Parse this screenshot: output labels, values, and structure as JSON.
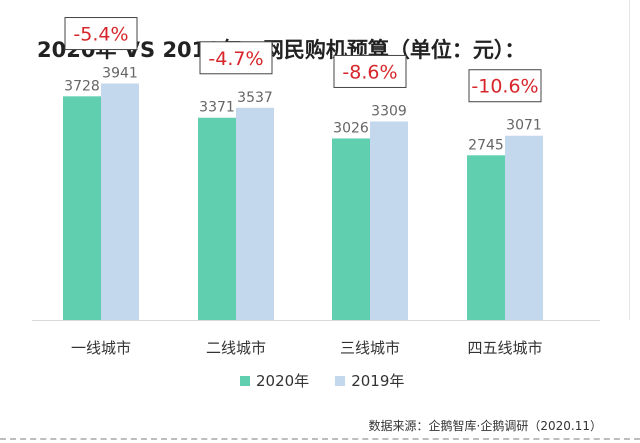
{
  "title": "2020年 VS 2019年，网民购机预算（单位：元）：",
  "source": "数据来源：企鹅智库·企鹅调研（2020.11）",
  "colors": {
    "series_2020": "#5fcfaf",
    "series_2019": "#c3d7ed",
    "change_text": "#d7262b",
    "value_text": "#666666",
    "axis": "#d9d9d9"
  },
  "chart_data": {
    "type": "bar",
    "title": "2020年 VS 2019年，网民购机预算（单位：元）：",
    "xlabel": "",
    "ylabel": "",
    "ylim": [
      0,
      5000
    ],
    "grid": false,
    "legend_position": "bottom",
    "categories": [
      "一线城市",
      "二线城市",
      "三线城市",
      "四五线城市"
    ],
    "series": [
      {
        "name": "2020年",
        "values": [
          3728,
          3371,
          3026,
          2745
        ]
      },
      {
        "name": "2019年",
        "values": [
          3941,
          3537,
          3309,
          3071
        ]
      }
    ],
    "annotations": [
      "-5.4%",
      "-4.7%",
      "-8.6%",
      "-10.6%"
    ]
  }
}
